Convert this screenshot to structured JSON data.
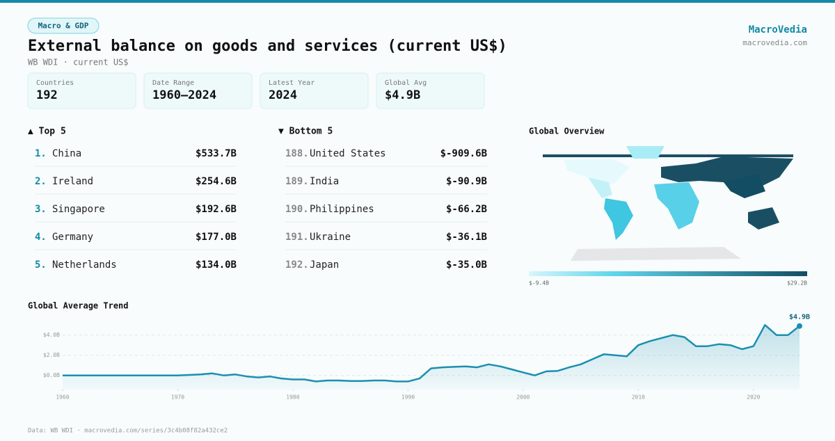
{
  "header": {
    "tag": "Macro & GDP",
    "title": "External balance on goods and services (current US$)",
    "subtitle": "WB WDI · current US$",
    "brand": "MacroVedia",
    "site": "macrovedia.com"
  },
  "stats": [
    {
      "label": "Countries",
      "value": "192"
    },
    {
      "label": "Date Range",
      "value": "1960–2024"
    },
    {
      "label": "Latest Year",
      "value": "2024"
    },
    {
      "label": "Global Avg",
      "value": "$4.9B"
    }
  ],
  "top": {
    "title": "▲ Top 5",
    "rows": [
      {
        "rank": "1.",
        "name": "China",
        "value": "$533.7B"
      },
      {
        "rank": "2.",
        "name": "Ireland",
        "value": "$254.6B"
      },
      {
        "rank": "3.",
        "name": "Singapore",
        "value": "$192.6B"
      },
      {
        "rank": "4.",
        "name": "Germany",
        "value": "$177.0B"
      },
      {
        "rank": "5.",
        "name": "Netherlands",
        "value": "$134.0B"
      }
    ]
  },
  "bottom": {
    "title": "▼ Bottom 5",
    "rows": [
      {
        "rank": "188.",
        "name": "United States",
        "value": "$-909.6B"
      },
      {
        "rank": "189.",
        "name": "India",
        "value": "$-90.9B"
      },
      {
        "rank": "190.",
        "name": "Philippines",
        "value": "$-66.2B"
      },
      {
        "rank": "191.",
        "name": "Ukraine",
        "value": "$-36.1B"
      },
      {
        "rank": "192.",
        "name": "Japan",
        "value": "$-35.0B"
      }
    ]
  },
  "map": {
    "title": "Global Overview",
    "min_label": "$-9.4B",
    "max_label": "$29.2B"
  },
  "chart_data": {
    "type": "line",
    "title": "Global Average Trend",
    "color": "#1a8fb0",
    "x": [
      1960,
      1961,
      1962,
      1963,
      1964,
      1965,
      1966,
      1967,
      1968,
      1969,
      1970,
      1971,
      1972,
      1973,
      1974,
      1975,
      1976,
      1977,
      1978,
      1979,
      1980,
      1981,
      1982,
      1983,
      1984,
      1985,
      1986,
      1987,
      1988,
      1989,
      1990,
      1991,
      1992,
      1993,
      1994,
      1995,
      1996,
      1997,
      1998,
      1999,
      2000,
      2001,
      2002,
      2003,
      2004,
      2005,
      2006,
      2007,
      2008,
      2009,
      2010,
      2011,
      2012,
      2013,
      2014,
      2015,
      2016,
      2017,
      2018,
      2019,
      2020,
      2021,
      2022,
      2023,
      2024
    ],
    "values": [
      0.0,
      0.0,
      0.0,
      0.0,
      0.0,
      0.0,
      0.0,
      0.0,
      0.0,
      0.0,
      0.0,
      0.05,
      0.1,
      0.2,
      0.0,
      0.1,
      -0.1,
      -0.2,
      -0.1,
      -0.3,
      -0.4,
      -0.4,
      -0.6,
      -0.5,
      -0.5,
      -0.55,
      -0.55,
      -0.5,
      -0.5,
      -0.6,
      -0.6,
      -0.3,
      0.7,
      0.8,
      0.85,
      0.9,
      0.8,
      1.1,
      0.9,
      0.6,
      0.3,
      0.0,
      0.4,
      0.45,
      0.8,
      1.1,
      1.6,
      2.1,
      2.0,
      1.9,
      3.0,
      3.4,
      3.7,
      4.0,
      3.8,
      2.9,
      2.9,
      3.1,
      3.0,
      2.6,
      2.9,
      5.0,
      4.0,
      4.0,
      4.9
    ],
    "value_labels": [
      null,
      null,
      null,
      null,
      null,
      null,
      null,
      null,
      null,
      null,
      null,
      null,
      null,
      null,
      null,
      null,
      null,
      null,
      null,
      null,
      null,
      null,
      null,
      null,
      null,
      null,
      null,
      null,
      null,
      null,
      null,
      null,
      null,
      null,
      null,
      null,
      null,
      null,
      null,
      null,
      null,
      null,
      null,
      null,
      null,
      null,
      null,
      null,
      null,
      null,
      null,
      null,
      null,
      null,
      null,
      null,
      null,
      null,
      null,
      null,
      null,
      null,
      null,
      null,
      "$4.9B"
    ],
    "xlim": [
      1960,
      2024
    ],
    "xticks": [
      1960,
      1970,
      1980,
      1990,
      2000,
      2010,
      2020
    ],
    "ylim": [
      -1.4,
      5.5
    ],
    "yticks": [
      {
        "value": 0,
        "label": "$0.0B"
      },
      {
        "value": 2,
        "label": "$2.0B"
      },
      {
        "value": 4,
        "label": "$4.0B"
      }
    ],
    "grid": true
  },
  "footer": "Data: WB WDI · macrovedia.com/series/3c4b08f82a432ce2"
}
